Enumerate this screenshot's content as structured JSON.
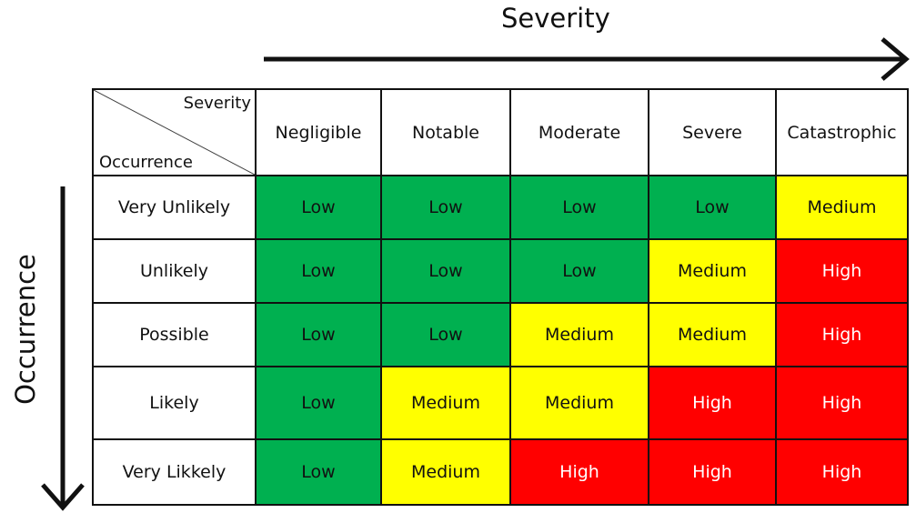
{
  "axis_titles": {
    "severity": "Severity",
    "occurrence": "Occurrence"
  },
  "corner": {
    "severity": "Severity",
    "occurrence": "Occurrence"
  },
  "severity_levels": [
    "Negligible",
    "Notable",
    "Moderate",
    "Severe",
    "Catastrophic"
  ],
  "occurrence_levels": [
    "Very Unlikely",
    "Unlikely",
    "Possible",
    "Likely",
    "Very Likkely"
  ],
  "matrix": [
    [
      "Low",
      "Low",
      "Low",
      "Low",
      "Medium"
    ],
    [
      "Low",
      "Low",
      "Low",
      "Medium",
      "High"
    ],
    [
      "Low",
      "Low",
      "Medium",
      "Medium",
      "High"
    ],
    [
      "Low",
      "Medium",
      "Medium",
      "High",
      "High"
    ],
    [
      "Low",
      "Medium",
      "High",
      "High",
      "High"
    ]
  ],
  "colors": {
    "Low": "#00b050",
    "Medium": "#ffff00",
    "High": "#ff0000",
    "border": "#111111"
  },
  "icons": {
    "severity_arrow": "arrow-right-icon",
    "occurrence_arrow": "arrow-down-icon"
  }
}
